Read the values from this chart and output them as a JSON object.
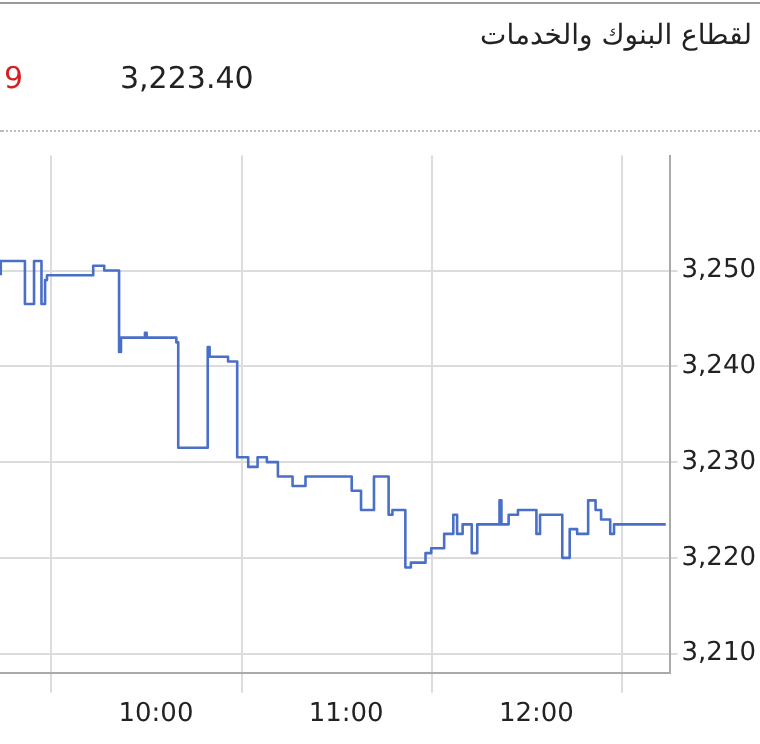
{
  "chart_data": {
    "type": "step",
    "title": "لقطاع البنوك والخدمات",
    "annotations": [
      "9",
      "3,223.40"
    ],
    "x": [
      9.184,
      9.311,
      9.359,
      9.398,
      9.417,
      9.427,
      9.67,
      9.728,
      9.806,
      9.816,
      9.942,
      9.951,
      10.107,
      10.117,
      10.272,
      10.282,
      10.379,
      10.427,
      10.485,
      10.534,
      10.583,
      10.641,
      10.718,
      10.786,
      10.835,
      10.893,
      11.029,
      11.078,
      11.107,
      11.146,
      11.223,
      11.243,
      11.262,
      11.311,
      11.34,
      11.417,
      11.447,
      11.515,
      11.563,
      11.583,
      11.612,
      11.66,
      11.689,
      11.728,
      11.806,
      11.816,
      11.854,
      11.903,
      11.951,
      12,
      12.019,
      12.078,
      12.136,
      12.175,
      12.214,
      12.272,
      12.311,
      12.34,
      12.388,
      12.408,
      12.68
    ],
    "series": [
      {
        "color": "#4a6fc7",
        "values": [
          3249.5,
          3251,
          3246.5,
          3251,
          3246.5,
          3249,
          3249.5,
          3250.5,
          3250,
          3241.5,
          3243,
          3243.5,
          3243,
          3242.5,
          3231.5,
          3242,
          3241,
          3240.5,
          3230.5,
          3229.5,
          3230.5,
          3230,
          3228.5,
          3227.5,
          3228.5,
          3228.5,
          3228.5,
          3227,
          3225,
          3225,
          3228.5,
          3224.5,
          3225,
          3225,
          3219,
          3219.5,
          3220.5,
          3221,
          3222.5,
          3224.5,
          3222.5,
          3223.5,
          3220.5,
          3223.5,
          3223.5,
          3226,
          3223.5,
          3224.5,
          3225,
          3225,
          3222.5,
          3224.5,
          3224.5,
          3220,
          3223,
          3222.5,
          3226,
          3225,
          3224,
          3222.5,
          3223.5
        ]
      }
    ],
    "xlim": [
      9.18,
      12.7
    ],
    "xticks": [
      {
        "value": 9.45,
        "label": null
      },
      {
        "value": 10,
        "label": "10:00"
      },
      {
        "value": 10.45,
        "label": null
      },
      {
        "value": 11,
        "label": "11:00"
      },
      {
        "value": 11.45,
        "label": null
      },
      {
        "value": 12,
        "label": "12:00"
      },
      {
        "value": 12.45,
        "label": null
      }
    ],
    "ylim": [
      3208,
      3262
    ],
    "yticks": [
      {
        "value": 3210,
        "label": "3,210"
      },
      {
        "value": 3220,
        "label": "3,220"
      },
      {
        "value": 3230,
        "label": "3,230"
      },
      {
        "value": 3240,
        "label": "3,240"
      },
      {
        "value": 3250,
        "label": "3,250"
      }
    ],
    "grid": true,
    "legend": false,
    "marker": "none",
    "line_style": "solid"
  }
}
